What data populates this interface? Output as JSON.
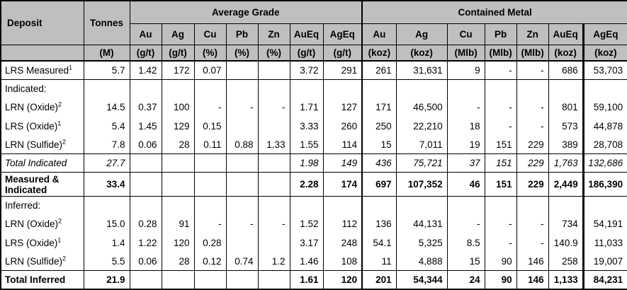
{
  "colors": {
    "header_bg": "#bfbfbf",
    "border": "#000000"
  },
  "table": {
    "header": {
      "deposit": "Deposit",
      "tonnes": "Tonnes",
      "tonnes_unit": "(M)",
      "groups": [
        {
          "label": "Average Grade"
        },
        {
          "label": "Contained Metal"
        }
      ],
      "grade_cols": [
        {
          "el": "Au",
          "unit": "(g/t)"
        },
        {
          "el": "Ag",
          "unit": "(g/t)"
        },
        {
          "el": "Cu",
          "unit": "(%)"
        },
        {
          "el": "Pb",
          "unit": "(%)"
        },
        {
          "el": "Zn",
          "unit": "(%)"
        },
        {
          "el": "AuEq",
          "unit": "(g/t)"
        },
        {
          "el": "AgEq",
          "unit": "(g/t)"
        }
      ],
      "metal_cols": [
        {
          "el": "Au",
          "unit": "(koz)"
        },
        {
          "el": "Ag",
          "unit": "(koz)"
        },
        {
          "el": "Cu",
          "unit": "(Mlb)"
        },
        {
          "el": "Pb",
          "unit": "(Mlb)"
        },
        {
          "el": "Zn",
          "unit": "(Mlb)"
        },
        {
          "el": "AuEq",
          "unit": "(koz)"
        },
        {
          "el": "AgEq",
          "unit": "(koz)"
        }
      ]
    },
    "rows": [
      {
        "deposit": "LRS Measured",
        "sup": "1",
        "style": "normal",
        "section": "single",
        "tonnes": "5.7",
        "values": [
          "1.42",
          "172",
          "0.07",
          "",
          "",
          "3.72",
          "291",
          "261",
          "31,631",
          "9",
          "-",
          "-",
          "686",
          "53,703"
        ]
      },
      {
        "deposit": "Indicated:",
        "style": "normal",
        "section": "start",
        "tonnes": "",
        "values": [
          "",
          "",
          "",
          "",
          "",
          "",
          "",
          "",
          "",
          "",
          "",
          "",
          "",
          ""
        ]
      },
      {
        "deposit": "LRN (Oxide)",
        "sup": "2",
        "style": "normal",
        "section": "mid",
        "tonnes": "14.5",
        "values": [
          "0.37",
          "100",
          "-",
          "-",
          "-",
          "1.71",
          "127",
          "171",
          "46,500",
          "-",
          "-",
          "-",
          "801",
          "59,100"
        ]
      },
      {
        "deposit": "LRS (Oxide)",
        "sup": "1",
        "style": "normal",
        "section": "mid",
        "tonnes": "5.4",
        "values": [
          "1.45",
          "129",
          "0.15",
          "",
          "",
          "3.33",
          "260",
          "250",
          "22,210",
          "18",
          "-",
          "-",
          "573",
          "44,878"
        ]
      },
      {
        "deposit": "LRN (Sulfide)",
        "sup": "2",
        "style": "normal",
        "section": "end",
        "tonnes": "7.8",
        "values": [
          "0.06",
          "28",
          "0.11",
          "0.88",
          "1.33",
          "1.55",
          "114",
          "15",
          "7,011",
          "19",
          "151",
          "229",
          "389",
          "28,708"
        ]
      },
      {
        "deposit": "Total Indicated",
        "style": "italic",
        "section": "single",
        "tonnes": "27.7",
        "values": [
          "",
          "",
          "",
          "",
          "",
          "1.98",
          "149",
          "436",
          "75,721",
          "37",
          "151",
          "229",
          "1,763",
          "132,686"
        ]
      },
      {
        "deposit": "Measured & Indicated",
        "style": "bold",
        "section": "single",
        "tonnes": "33.4",
        "values": [
          "",
          "",
          "",
          "",
          "",
          "2.28",
          "174",
          "697",
          "107,352",
          "46",
          "151",
          "229",
          "2,449",
          "186,390"
        ]
      },
      {
        "deposit": "Inferred:",
        "style": "normal",
        "section": "start",
        "tonnes": "",
        "values": [
          "",
          "",
          "",
          "",
          "",
          "",
          "",
          "",
          "",
          "",
          "",
          "",
          "",
          ""
        ]
      },
      {
        "deposit": "LRN (Oxide)",
        "sup": "2",
        "style": "normal",
        "section": "mid",
        "tonnes": "15.0",
        "values": [
          "0.28",
          "91",
          "-",
          "-",
          "-",
          "1.52",
          "112",
          "136",
          "44,131",
          "-",
          "-",
          "-",
          "734",
          "54,191"
        ]
      },
      {
        "deposit": "LRS (Oxide)",
        "sup": "1",
        "style": "normal",
        "section": "mid",
        "tonnes": "1.4",
        "values": [
          "1.22",
          "120",
          "0.28",
          "",
          "",
          "3.17",
          "248",
          "54.1",
          "5,325",
          "8.5",
          "-",
          "-",
          "140.9",
          "11,033"
        ]
      },
      {
        "deposit": "LRN (Sulfide)",
        "sup": "2",
        "style": "normal",
        "section": "end",
        "tonnes": "5.5",
        "values": [
          "0.06",
          "28",
          "0.12",
          "0.74",
          "1.2",
          "1.46",
          "108",
          "11",
          "4,888",
          "15",
          "90",
          "146",
          "258",
          "19,007"
        ]
      },
      {
        "deposit": "Total Inferred",
        "style": "bold",
        "section": "single",
        "tonnes": "21.9",
        "values": [
          "",
          "",
          "",
          "",
          "",
          "1.61",
          "120",
          "201",
          "54,344",
          "24",
          "90",
          "146",
          "1,133",
          "84,231"
        ]
      }
    ]
  }
}
